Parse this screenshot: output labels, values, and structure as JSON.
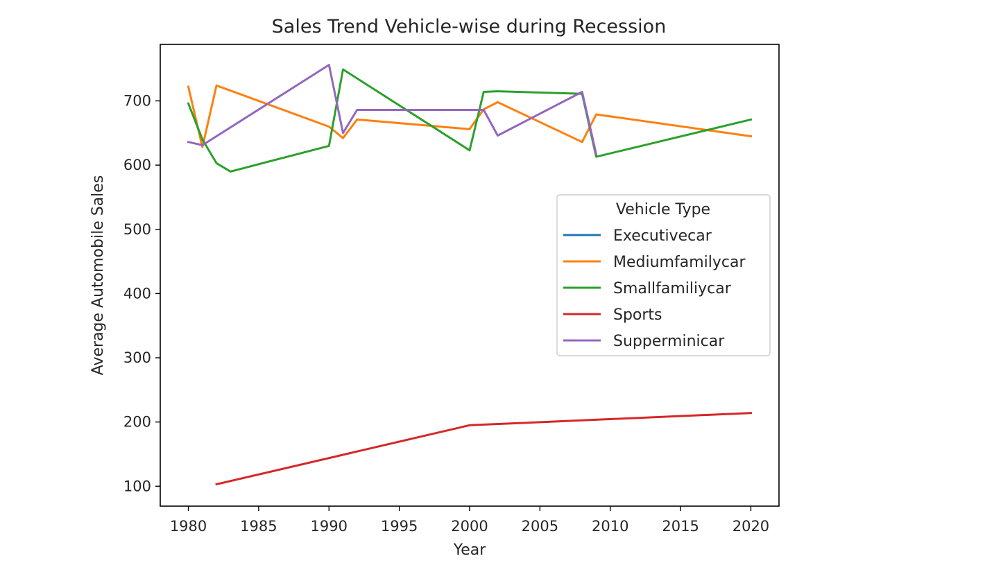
{
  "chart_data": {
    "type": "line",
    "title": "Sales Trend Vehicle-wise during Recession",
    "xlabel": "Year",
    "ylabel": "Average Automobile Sales",
    "xlim": [
      1978,
      2022
    ],
    "ylim": [
      69,
      788
    ],
    "xticks": [
      1980,
      1985,
      1990,
      1995,
      2000,
      2005,
      2010,
      2015,
      2020
    ],
    "yticks": [
      100,
      200,
      300,
      400,
      500,
      600,
      700
    ],
    "grid": false,
    "legend": {
      "title": "Vehicle Type",
      "placement": "center-right"
    },
    "series": [
      {
        "name": "Executivecar",
        "color": "#1f77b4",
        "x": [],
        "y": []
      },
      {
        "name": "Mediumfamilycar",
        "color": "#ff7f0e",
        "x": [
          1980,
          1981,
          1982,
          1990,
          1991,
          1992,
          2000,
          2001,
          2002,
          2008,
          2009,
          2020
        ],
        "y": [
          722,
          628,
          724,
          660,
          642,
          671,
          656,
          687,
          698,
          636,
          679,
          645
        ]
      },
      {
        "name": "Smallfamiliycar",
        "color": "#2ca02c",
        "x": [
          1980,
          1981,
          1982,
          1983,
          1990,
          1991,
          2000,
          2001,
          2002,
          2008,
          2009,
          2020
        ],
        "y": [
          696,
          640,
          603,
          590,
          630,
          749,
          623,
          714,
          715,
          711,
          613,
          671
        ]
      },
      {
        "name": "Sports",
        "color": "#d62728",
        "x": [
          1982,
          2000,
          2020
        ],
        "y": [
          103,
          195,
          214
        ]
      },
      {
        "name": "Supperminicar",
        "color": "#9467bd",
        "x": [
          1980,
          1981,
          1990,
          1991,
          1992,
          2000,
          2001,
          2002,
          2008,
          2009
        ],
        "y": [
          636,
          631,
          756,
          650,
          686,
          686,
          686,
          646,
          714,
          617
        ]
      }
    ]
  }
}
